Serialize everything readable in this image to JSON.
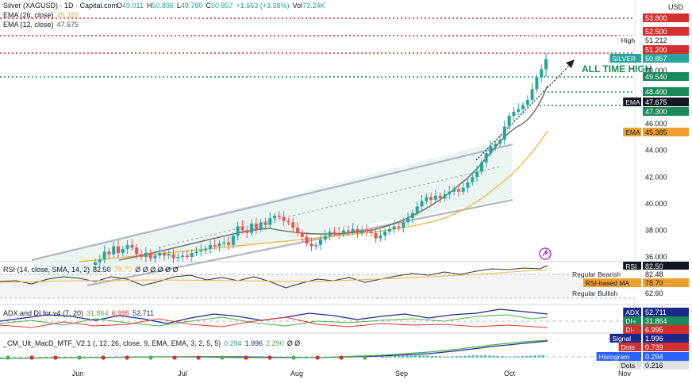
{
  "header": {
    "symbol": "Silver (XAGUSD) · 1D · Capital.com",
    "o_label": "O",
    "o_val": "49.011",
    "h_label": "H",
    "h_val": "50.896",
    "l_label": "L",
    "l_val": "48.780",
    "c_label": "C",
    "c_val": "50.857",
    "change": "+1.663 (+3.38%)",
    "vol_label": "Vol",
    "vol_val": "73.24K",
    "ema26_label": "EMA (26, close)",
    "ema26_val": "45.385",
    "ema12_label": "EMA (12, close)",
    "ema12_val": "47.675"
  },
  "currency": "USD",
  "annotation": "ALL TIME HIGH",
  "colors": {
    "up": "#26a69a",
    "down": "#ef5350",
    "ema12": "#555555",
    "ema26": "#f0b54a",
    "rsi": "#333333",
    "rsi_ma": "#f0b54a",
    "adx": "#1b2a8a",
    "di_plus": "#4caf50",
    "di_minus": "#e53935",
    "red_level": "#d32f2f",
    "green_level": "#1b8a5a",
    "channel_fill": "#e8f4f1"
  },
  "price_axis": {
    "ticks": [
      "50.000",
      "46.000",
      "44.000",
      "42.000",
      "40.000",
      "38.000",
      "36.000"
    ],
    "badges": [
      {
        "label": "",
        "value": "53.800",
        "kind": "red"
      },
      {
        "label": "",
        "value": "52.500",
        "kind": "red"
      },
      {
        "label": "High",
        "value": "51.212",
        "kind": "plain"
      },
      {
        "label": "",
        "value": "51.200",
        "kind": "red"
      },
      {
        "label": "SILVER",
        "value": "50.857",
        "kind": "teal"
      },
      {
        "label": "",
        "value": "49.540",
        "kind": "green"
      },
      {
        "label": "",
        "value": "48.400",
        "kind": "green"
      },
      {
        "label": "EMA",
        "value": "47.675",
        "kind": "black"
      },
      {
        "label": "",
        "value": "47.300",
        "kind": "green"
      },
      {
        "label": "EMA",
        "value": "45.385",
        "kind": "orange"
      }
    ]
  },
  "rsi_panel": {
    "title": "RSI (14, close, SMA, 14, 2)",
    "rsi": "82.50",
    "ma": "78.70",
    "placeholders": "Ø Ø Ø Ø Ø Ø",
    "badges": [
      {
        "label": "RSI",
        "value": "82.50",
        "kind": "black"
      },
      {
        "label": "Regular Bearish",
        "value": "82.48",
        "kind": "plain"
      },
      {
        "label": "RSI-based MA",
        "value": "78.70",
        "kind": "orange"
      },
      {
        "label": "Regular Bullish",
        "value": "62.60",
        "kind": "plain"
      }
    ]
  },
  "adx_panel": {
    "title": "ADX and DI for v4 (7, 20)",
    "v1": "31.864",
    "v2": "6.995",
    "v3": "52.711",
    "badges": [
      {
        "label": "ADX",
        "value": "52.711",
        "kind": "navy"
      },
      {
        "label": "DI+",
        "value": "31.864",
        "kind": "green"
      },
      {
        "label": "DI-",
        "value": "6.995",
        "kind": "red"
      }
    ]
  },
  "macd_panel": {
    "title": "_CM_Ult_MacD_MTF_V2.1 (, 12, 26, close, 9, EMA, EMA, 3, 2, 5, 5)",
    "v1": "0.294",
    "v2": "1.996",
    "v3": "2.290",
    "placeholders": "Ø Ø",
    "badges": [
      {
        "label": "Signal",
        "value": "1.996",
        "kind": "navy"
      },
      {
        "label": "Dots",
        "value": "0.739",
        "kind": "red"
      },
      {
        "label": "Histogram",
        "value": "0.294",
        "kind": "blue"
      },
      {
        "label": "Dots",
        "value": "0.216",
        "kind": "plaingray"
      }
    ]
  },
  "time_axis": [
    "Jun",
    "Jul",
    "Aug",
    "Sep",
    "Oct",
    "Nov"
  ],
  "chart_data": {
    "type": "candlestick",
    "title": "Silver (XAGUSD) · 1D · Capital.com",
    "ylabel": "USD",
    "ylim": [
      35.5,
      54.6
    ],
    "x": [
      "Jun",
      "Jul",
      "Aug",
      "Sep",
      "Oct",
      "Nov"
    ],
    "horizontal_levels": {
      "resistance_red": [
        53.8,
        52.5,
        51.2
      ],
      "support_green": [
        49.54,
        48.4,
        47.3
      ]
    },
    "ohlc_close_path": [
      35.6,
      35.8,
      36.4,
      36.2,
      36.8,
      36.3,
      36.6,
      36.9,
      36.7,
      36.2,
      36.0,
      36.3,
      35.9,
      36.1,
      36.3,
      36.1,
      36.2,
      35.9,
      36.0,
      36.1,
      36.0,
      36.3,
      36.4,
      36.5,
      36.6,
      36.9,
      36.8,
      37.0,
      37.1,
      36.9,
      37.6,
      38.3,
      38.0,
      37.8,
      38.5,
      38.1,
      38.6,
      38.4,
      38.9,
      39.1,
      39.0,
      38.7,
      38.6,
      38.2,
      37.8,
      37.5,
      37.0,
      36.8,
      36.9,
      37.3,
      37.6,
      37.9,
      37.8,
      37.7,
      38.0,
      37.9,
      38.1,
      37.8,
      38.0,
      37.9,
      37.8,
      37.4,
      37.6,
      37.9,
      38.1,
      38.3,
      38.2,
      38.6,
      38.9,
      39.3,
      39.8,
      40.2,
      40.5,
      40.3,
      40.6,
      40.4,
      40.7,
      40.9,
      41.1,
      40.9,
      41.2,
      41.6,
      42.0,
      42.4,
      43.1,
      43.8,
      44.3,
      44.5,
      44.8,
      45.8,
      46.6,
      46.9,
      47.1,
      47.4,
      47.8,
      48.6,
      49.5,
      50.1,
      50.86
    ],
    "ema12_last": 47.675,
    "ema26_last": 45.385,
    "high": 51.212,
    "annotation": "ALL TIME HIGH",
    "rsi": {
      "rsi": 82.5,
      "ma": 78.7,
      "regular_bearish": 82.48,
      "regular_bullish": 62.6
    },
    "adx": {
      "adx": 52.711,
      "di_plus": 31.864,
      "di_minus": 6.995
    },
    "macd": {
      "macd": 2.29,
      "signal": 1.996,
      "histogram": 0.294
    }
  }
}
